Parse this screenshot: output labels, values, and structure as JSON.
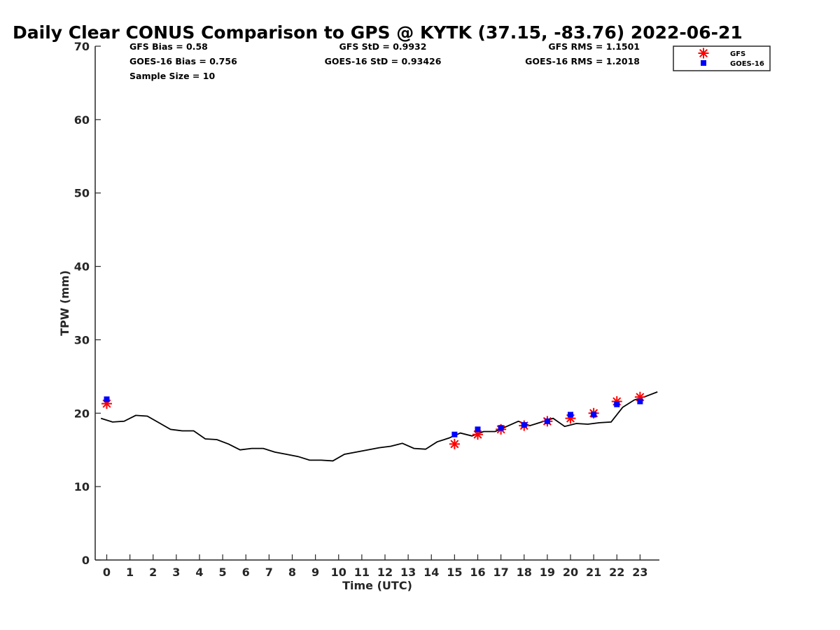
{
  "chart_data": {
    "type": "line",
    "title": "Daily Clear CONUS Comparison to GPS @ KYTK (37.15, -83.76) 2022-06-21",
    "xlabel": "Time (UTC)",
    "ylabel": "TPW (mm)",
    "xlim": [
      -0.5,
      23.75
    ],
    "ylim": [
      0,
      70
    ],
    "x_ticks": [
      "0",
      "1",
      "2",
      "3",
      "4",
      "5",
      "6",
      "7",
      "8",
      "9",
      "10",
      "11",
      "12",
      "13",
      "14",
      "15",
      "16",
      "17",
      "18",
      "19",
      "20",
      "21",
      "22",
      "23"
    ],
    "y_ticks": [
      "0",
      "10",
      "20",
      "30",
      "40",
      "50",
      "60",
      "70"
    ],
    "grid": false,
    "legend_position": "top-right",
    "stats": [
      [
        "GFS Bias = 0.58",
        "GFS StD = 0.9932",
        "GFS RMS = 1.1501"
      ],
      [
        "GOES-16 Bias = 0.756",
        "GOES-16 StD = 0.93426",
        "GOES-16 RMS = 1.2018"
      ],
      [
        "Sample Size = 10"
      ]
    ],
    "series": [
      {
        "name": "",
        "kind": "line",
        "color": "#000000",
        "x": [
          -0.25,
          0.25,
          0.75,
          1.25,
          1.75,
          2.25,
          2.75,
          3.25,
          3.75,
          4.25,
          4.75,
          5.25,
          5.75,
          6.25,
          6.75,
          7.25,
          7.75,
          8.25,
          8.75,
          9.25,
          9.75,
          10.25,
          10.75,
          11.25,
          11.75,
          12.25,
          12.75,
          13.25,
          13.75,
          14.25,
          14.75,
          15.25,
          15.75,
          16.25,
          16.75,
          17.25,
          17.75,
          18.25,
          18.75,
          19.25,
          19.75,
          20.25,
          20.75,
          21.25,
          21.75,
          22.25,
          22.75,
          23.25,
          23.75
        ],
        "y": [
          19.3,
          18.8,
          18.9,
          19.7,
          19.6,
          18.7,
          17.8,
          17.6,
          17.6,
          16.5,
          16.4,
          15.8,
          15.0,
          15.2,
          15.2,
          14.7,
          14.4,
          14.1,
          13.6,
          13.6,
          13.5,
          14.4,
          14.7,
          15.0,
          15.3,
          15.5,
          15.9,
          15.2,
          15.1,
          16.1,
          16.6,
          17.3,
          16.9,
          17.5,
          17.5,
          18.2,
          18.9,
          18.3,
          18.8,
          19.3,
          18.2,
          18.6,
          18.5,
          18.7,
          18.8,
          20.8,
          21.8,
          22.3,
          22.9
        ]
      },
      {
        "name": "GFS",
        "kind": "asterisk",
        "color": "#ff0000",
        "x": [
          0,
          15,
          16,
          17,
          18,
          19,
          20,
          21,
          22,
          23
        ],
        "y": [
          21.3,
          15.8,
          17.1,
          17.8,
          18.3,
          18.9,
          19.3,
          20.0,
          21.6,
          22.2
        ]
      },
      {
        "name": "GOES-16",
        "kind": "square",
        "color": "#0000ff",
        "x": [
          0,
          15,
          16,
          17,
          18,
          19,
          20,
          21,
          22,
          23
        ],
        "y": [
          21.9,
          17.1,
          17.8,
          18.0,
          18.4,
          18.9,
          19.8,
          19.8,
          21.2,
          21.6
        ]
      }
    ]
  }
}
